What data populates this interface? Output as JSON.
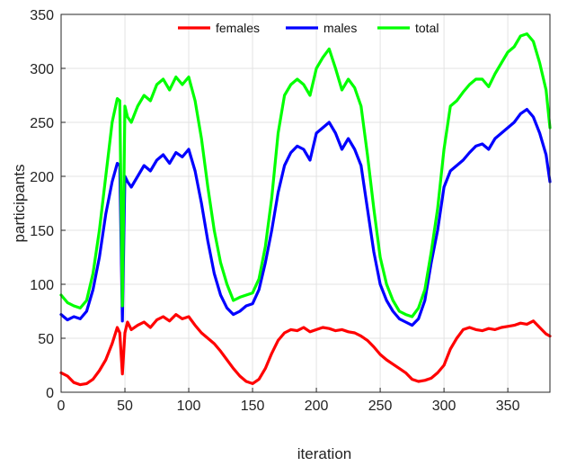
{
  "chart_data": {
    "type": "line",
    "title": "",
    "xlabel": "iteration",
    "ylabel": "participants",
    "xlim": [
      0,
      383
    ],
    "ylim": [
      0,
      350
    ],
    "xticks": [
      0,
      50,
      100,
      150,
      200,
      250,
      300,
      350
    ],
    "yticks": [
      0,
      50,
      100,
      150,
      200,
      250,
      300,
      350
    ],
    "grid": true,
    "legend": "top-center",
    "series": [
      {
        "name": "females",
        "color": "#ff0000",
        "x": [
          0,
          5,
          10,
          15,
          20,
          25,
          30,
          35,
          40,
          44,
          46,
          48,
          50,
          52,
          55,
          60,
          65,
          70,
          75,
          80,
          85,
          90,
          95,
          100,
          105,
          110,
          115,
          120,
          125,
          130,
          135,
          140,
          145,
          150,
          155,
          160,
          165,
          170,
          175,
          180,
          185,
          190,
          195,
          200,
          205,
          210,
          215,
          220,
          225,
          230,
          235,
          240,
          245,
          250,
          255,
          260,
          265,
          270,
          275,
          280,
          285,
          290,
          295,
          300,
          305,
          310,
          315,
          320,
          325,
          330,
          335,
          340,
          345,
          350,
          355,
          360,
          365,
          370,
          375,
          380,
          383
        ],
        "values": [
          18,
          15,
          9,
          7,
          8,
          12,
          20,
          30,
          45,
          60,
          55,
          17,
          55,
          65,
          58,
          62,
          65,
          60,
          67,
          70,
          66,
          72,
          68,
          70,
          62,
          55,
          50,
          45,
          38,
          30,
          22,
          15,
          10,
          8,
          12,
          22,
          36,
          48,
          55,
          58,
          57,
          60,
          56,
          58,
          60,
          59,
          57,
          58,
          56,
          55,
          52,
          48,
          42,
          35,
          30,
          26,
          22,
          18,
          12,
          10,
          11,
          13,
          18,
          25,
          40,
          50,
          58,
          60,
          58,
          57,
          59,
          58,
          60,
          61,
          62,
          64,
          63,
          66,
          60,
          54,
          52
        ]
      },
      {
        "name": "males",
        "color": "#0000ff",
        "x": [
          0,
          5,
          10,
          15,
          20,
          25,
          30,
          35,
          40,
          44,
          46,
          48,
          50,
          52,
          55,
          60,
          65,
          70,
          75,
          80,
          85,
          90,
          95,
          100,
          105,
          110,
          115,
          120,
          125,
          130,
          135,
          140,
          145,
          150,
          155,
          160,
          165,
          170,
          175,
          180,
          185,
          190,
          195,
          200,
          205,
          210,
          215,
          220,
          225,
          230,
          235,
          240,
          245,
          250,
          255,
          260,
          265,
          270,
          275,
          280,
          285,
          290,
          295,
          300,
          305,
          310,
          315,
          320,
          325,
          330,
          335,
          340,
          345,
          350,
          355,
          360,
          365,
          370,
          375,
          380,
          383
        ],
        "values": [
          72,
          67,
          70,
          68,
          75,
          95,
          125,
          165,
          195,
          212,
          210,
          66,
          200,
          195,
          190,
          200,
          210,
          205,
          215,
          220,
          212,
          222,
          218,
          225,
          205,
          175,
          140,
          110,
          90,
          78,
          72,
          75,
          80,
          82,
          95,
          120,
          150,
          185,
          210,
          222,
          228,
          225,
          215,
          240,
          245,
          250,
          240,
          225,
          235,
          225,
          210,
          170,
          130,
          100,
          85,
          75,
          68,
          65,
          62,
          68,
          85,
          120,
          150,
          190,
          205,
          210,
          215,
          222,
          228,
          230,
          225,
          235,
          240,
          245,
          250,
          258,
          262,
          255,
          240,
          220,
          195
        ]
      },
      {
        "name": "total",
        "color": "#00ff00",
        "x": [
          0,
          5,
          10,
          15,
          20,
          25,
          30,
          35,
          40,
          44,
          46,
          48,
          50,
          52,
          55,
          60,
          65,
          70,
          75,
          80,
          85,
          90,
          95,
          100,
          105,
          110,
          115,
          120,
          125,
          130,
          135,
          140,
          145,
          150,
          155,
          160,
          165,
          170,
          175,
          180,
          185,
          190,
          195,
          200,
          205,
          210,
          215,
          220,
          225,
          230,
          235,
          240,
          245,
          250,
          255,
          260,
          265,
          270,
          275,
          280,
          285,
          290,
          295,
          300,
          305,
          310,
          315,
          320,
          325,
          330,
          335,
          340,
          345,
          350,
          355,
          360,
          365,
          370,
          375,
          380,
          383
        ],
        "values": [
          90,
          83,
          80,
          78,
          85,
          110,
          150,
          200,
          250,
          272,
          270,
          80,
          265,
          255,
          250,
          265,
          275,
          270,
          285,
          290,
          280,
          292,
          285,
          292,
          270,
          235,
          190,
          150,
          120,
          100,
          85,
          88,
          90,
          92,
          105,
          135,
          180,
          240,
          275,
          285,
          290,
          285,
          275,
          300,
          310,
          318,
          300,
          280,
          290,
          282,
          265,
          220,
          170,
          125,
          100,
          85,
          75,
          72,
          70,
          78,
          95,
          130,
          170,
          225,
          265,
          270,
          278,
          285,
          290,
          290,
          283,
          295,
          305,
          315,
          320,
          330,
          332,
          325,
          305,
          280,
          245
        ]
      }
    ]
  }
}
